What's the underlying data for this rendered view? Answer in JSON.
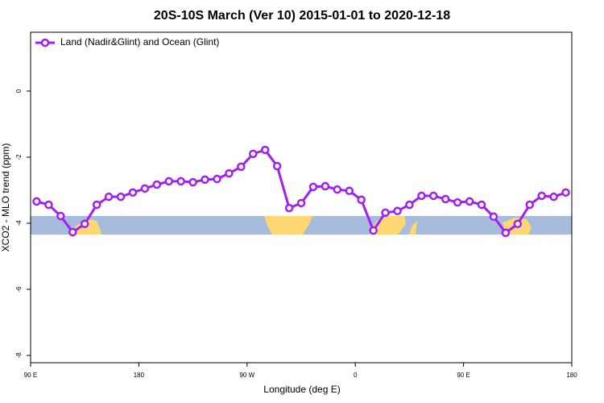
{
  "chart_data": {
    "type": "line",
    "title": "20S-10S March (Ver 10)   2015-01-01 to 2020-12-18",
    "x_label": "Longitude (deg E)",
    "y_label": "XCO2 - MLO trend (ppm)",
    "x": [
      95,
      105,
      115,
      125,
      135,
      145,
      155,
      165,
      175,
      185,
      195,
      205,
      215,
      225,
      235,
      245,
      255,
      265,
      275,
      285,
      295,
      305,
      315,
      325,
      335,
      345,
      355,
      365,
      375,
      385,
      395,
      405,
      415,
      425,
      435,
      445,
      455,
      465,
      475,
      485,
      495,
      505,
      515,
      525,
      535
    ],
    "series": [
      {
        "name": "Land (Nadir&Glint) and Ocean (Glint)",
        "color": "#a020f0",
        "values": [
          -3.34,
          -3.44,
          -3.78,
          -4.27,
          -4.02,
          -3.44,
          -3.2,
          -3.2,
          -3.07,
          -2.95,
          -2.83,
          -2.73,
          -2.73,
          -2.76,
          -2.68,
          -2.66,
          -2.49,
          -2.29,
          -1.9,
          -1.78,
          -2.27,
          -3.54,
          -3.39,
          -2.9,
          -2.88,
          -2.98,
          -3.02,
          -3.29,
          -4.22,
          -3.68,
          -3.63,
          -3.44,
          -3.17,
          -3.17,
          -3.27,
          -3.37,
          -3.34,
          -3.44,
          -3.8,
          -4.29,
          -4.02,
          -3.44,
          -3.17,
          -3.2,
          -3.07
        ]
      }
    ],
    "xlim": [
      90,
      540
    ],
    "xticks": [
      {
        "value": 90,
        "label": "90 E"
      },
      180,
      {
        "value": 270,
        "label": "90 W"
      },
      {
        "value": 360,
        "label": "0"
      },
      {
        "value": 450,
        "label": "90 E"
      },
      {
        "value": 540,
        "label": "180"
      }
    ],
    "ylim": [
      -8.22,
      1.78
    ],
    "yticks": [
      0,
      -2,
      -4,
      -6,
      -8
    ],
    "legend": "top-left"
  }
}
